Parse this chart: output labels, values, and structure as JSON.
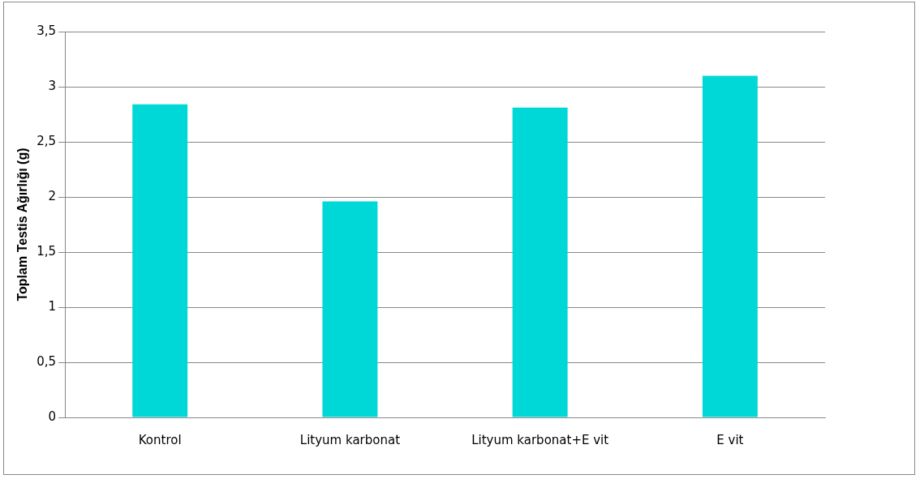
{
  "chart_data": {
    "type": "bar",
    "ylabel": "Toplam Testis Ağırlığı (g)",
    "categories": [
      "Kontrol",
      "Lityum karbonat",
      "Lityum karbonat+E vit",
      "E vit"
    ],
    "values": [
      2.84,
      1.96,
      2.81,
      3.1
    ],
    "color": "#00d8d8",
    "ylim": [
      0,
      3.5
    ],
    "yticks": [
      0,
      {
        "value": 0.5,
        "label": "0,5"
      },
      1,
      {
        "value": 1.5,
        "label": "1,5"
      },
      2,
      {
        "value": 2.5,
        "label": "2,5"
      },
      3,
      {
        "value": 3.5,
        "label": "3,5"
      }
    ],
    "grid": "y",
    "legend": false
  }
}
